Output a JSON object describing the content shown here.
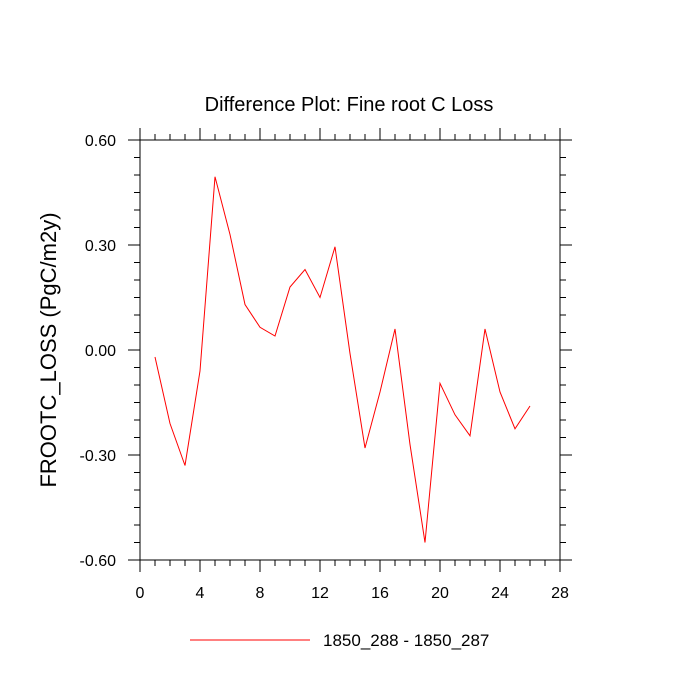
{
  "chart_data": {
    "type": "line",
    "title": "Difference Plot: Fine root C Loss",
    "xlabel": "",
    "ylabel": "FROOTC_LOSS  (PgC/m2y)",
    "xlim": [
      0,
      28
    ],
    "ylim": [
      -0.6,
      0.6
    ],
    "x_ticks": [
      0,
      4,
      8,
      12,
      16,
      20,
      24,
      28
    ],
    "x_tick_labels": [
      "0",
      "4",
      "8",
      "12",
      "16",
      "20",
      "24",
      "28"
    ],
    "y_ticks": [
      -0.6,
      -0.3,
      0.0,
      0.3,
      0.6
    ],
    "y_tick_labels": [
      "-0.60",
      "-0.30",
      "0.00",
      "0.30",
      "0.60"
    ],
    "grid": false,
    "legend_position": "bottom",
    "series": [
      {
        "name": "1850_288 - 1850_287",
        "color": "#ff0000",
        "x": [
          1,
          2,
          3,
          4,
          5,
          6,
          7,
          8,
          9,
          10,
          11,
          12,
          13,
          14,
          15,
          16,
          17,
          18,
          19,
          20,
          21,
          22,
          23,
          24,
          25,
          26
        ],
        "y": [
          -0.02,
          -0.21,
          -0.33,
          -0.06,
          0.495,
          0.33,
          0.13,
          0.065,
          0.04,
          0.18,
          0.23,
          0.15,
          0.295,
          -0.01,
          -0.28,
          -0.12,
          0.06,
          -0.27,
          -0.55,
          -0.095,
          -0.185,
          -0.245,
          0.06,
          -0.12,
          -0.225,
          -0.16
        ]
      }
    ]
  }
}
